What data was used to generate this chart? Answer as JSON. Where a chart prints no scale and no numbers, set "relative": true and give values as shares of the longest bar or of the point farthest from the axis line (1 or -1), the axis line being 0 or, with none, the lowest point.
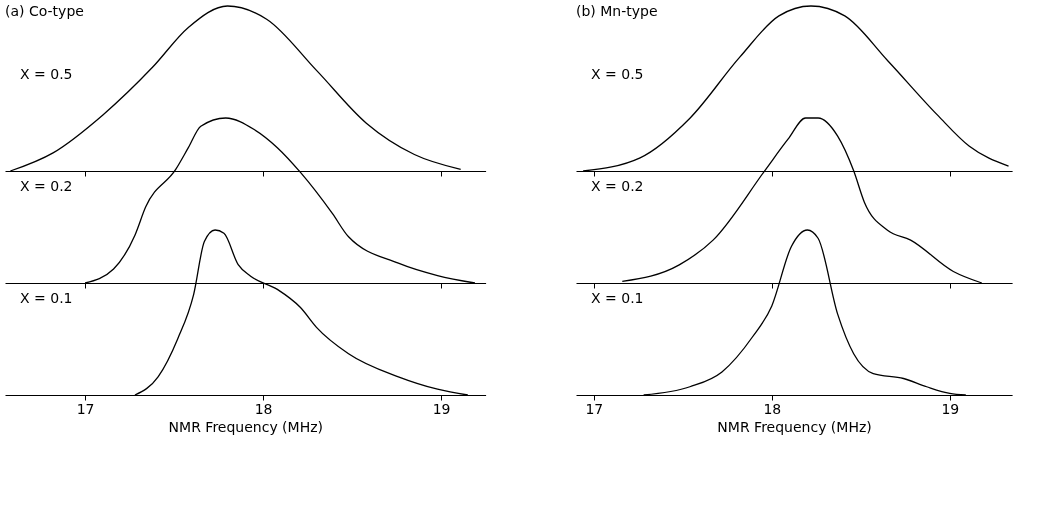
{
  "chart_data": [
    {
      "type": "line",
      "title": "(a) Co-type",
      "relative": true,
      "xlim": [
        16.55,
        19.25
      ],
      "xticks": [
        17,
        18,
        19
      ],
      "tick_labels": false,
      "series": [
        {
          "name": "X = 0.5",
          "color": "#000000",
          "x": [
            16.58,
            16.82,
            17.1,
            17.38,
            17.58,
            17.8,
            18.02,
            18.3,
            18.58,
            18.85,
            19.11
          ],
          "values": [
            0,
            0.11,
            0.34,
            0.63,
            0.87,
            1,
            0.92,
            0.61,
            0.29,
            0.1,
            0.01
          ]
        }
      ]
    },
    {
      "type": "line",
      "relative": true,
      "xlim": [
        16.55,
        19.25
      ],
      "xticks": [
        17,
        18,
        19
      ],
      "tick_labels": false,
      "series": [
        {
          "name": "X = 0.2",
          "color": "#000000",
          "x": [
            17.0,
            17.16,
            17.28,
            17.34,
            17.51,
            17.58,
            17.65,
            17.79,
            17.95,
            18.08,
            18.21,
            18.39,
            18.48,
            18.76,
            18.98,
            19.19
          ],
          "values": [
            0,
            0.085,
            0.29,
            0.46,
            0.69,
            0.82,
            0.95,
            1,
            0.93,
            0.82,
            0.67,
            0.42,
            0.28,
            0.12,
            0.045,
            0
          ]
        }
      ]
    },
    {
      "type": "line",
      "xlabel": "NMR Frequency (MHz)",
      "relative": true,
      "xlim": [
        16.55,
        19.25
      ],
      "xticks": [
        17,
        18,
        19
      ],
      "tick_labels": "x",
      "series": [
        {
          "name": "X = 0.1",
          "color": "#000000",
          "x": [
            17.28,
            17.41,
            17.52,
            17.61,
            17.67,
            17.73,
            17.78,
            17.86,
            17.93,
            18.08,
            18.21,
            18.3,
            18.48,
            18.76,
            18.98,
            19.15
          ],
          "values": [
            0,
            0.11,
            0.34,
            0.61,
            0.93,
            1,
            0.98,
            0.79,
            0.72,
            0.64,
            0.53,
            0.41,
            0.25,
            0.11,
            0.035,
            0
          ]
        }
      ]
    },
    {
      "type": "line",
      "title": "(b) Mn-type",
      "relative": true,
      "xlim": [
        16.9,
        19.35
      ],
      "xticks": [
        17,
        18,
        19
      ],
      "tick_labels": false,
      "series": [
        {
          "name": "X = 0.5",
          "color": "#000000",
          "x": [
            16.94,
            17.26,
            17.54,
            17.82,
            18.04,
            18.22,
            18.41,
            18.65,
            18.93,
            19.11,
            19.33
          ],
          "values": [
            0,
            0.08,
            0.32,
            0.69,
            0.94,
            1,
            0.94,
            0.67,
            0.34,
            0.15,
            0.03
          ]
        }
      ]
    },
    {
      "type": "line",
      "relative": true,
      "xlim": [
        16.9,
        19.35
      ],
      "xticks": [
        17,
        18,
        19
      ],
      "tick_labels": false,
      "series": [
        {
          "name": "X = 0.2",
          "color": "#000000",
          "x": [
            17.16,
            17.48,
            17.67,
            17.96,
            18.09,
            18.19,
            18.26,
            18.37,
            18.46,
            18.52,
            18.65,
            18.78,
            19.02,
            19.18
          ],
          "values": [
            0.01,
            0.11,
            0.26,
            0.68,
            0.87,
            1,
            1,
            0.89,
            0.68,
            0.49,
            0.32,
            0.26,
            0.07,
            0
          ]
        }
      ]
    },
    {
      "type": "line",
      "xlabel": "NMR Frequency (MHz)",
      "relative": true,
      "xlim": [
        16.9,
        19.35
      ],
      "xticks": [
        17,
        18,
        19
      ],
      "tick_labels": "x",
      "series": [
        {
          "name": "X = 0.1",
          "color": "#000000",
          "x": [
            17.28,
            17.54,
            17.72,
            17.89,
            18.0,
            18.11,
            18.2,
            18.26,
            18.37,
            18.46,
            18.57,
            18.74,
            18.87,
            19.0,
            19.09
          ],
          "values": [
            0,
            0.05,
            0.14,
            0.35,
            0.54,
            0.9,
            1,
            0.95,
            0.49,
            0.25,
            0.13,
            0.1,
            0.05,
            0.01,
            0
          ]
        }
      ]
    }
  ]
}
